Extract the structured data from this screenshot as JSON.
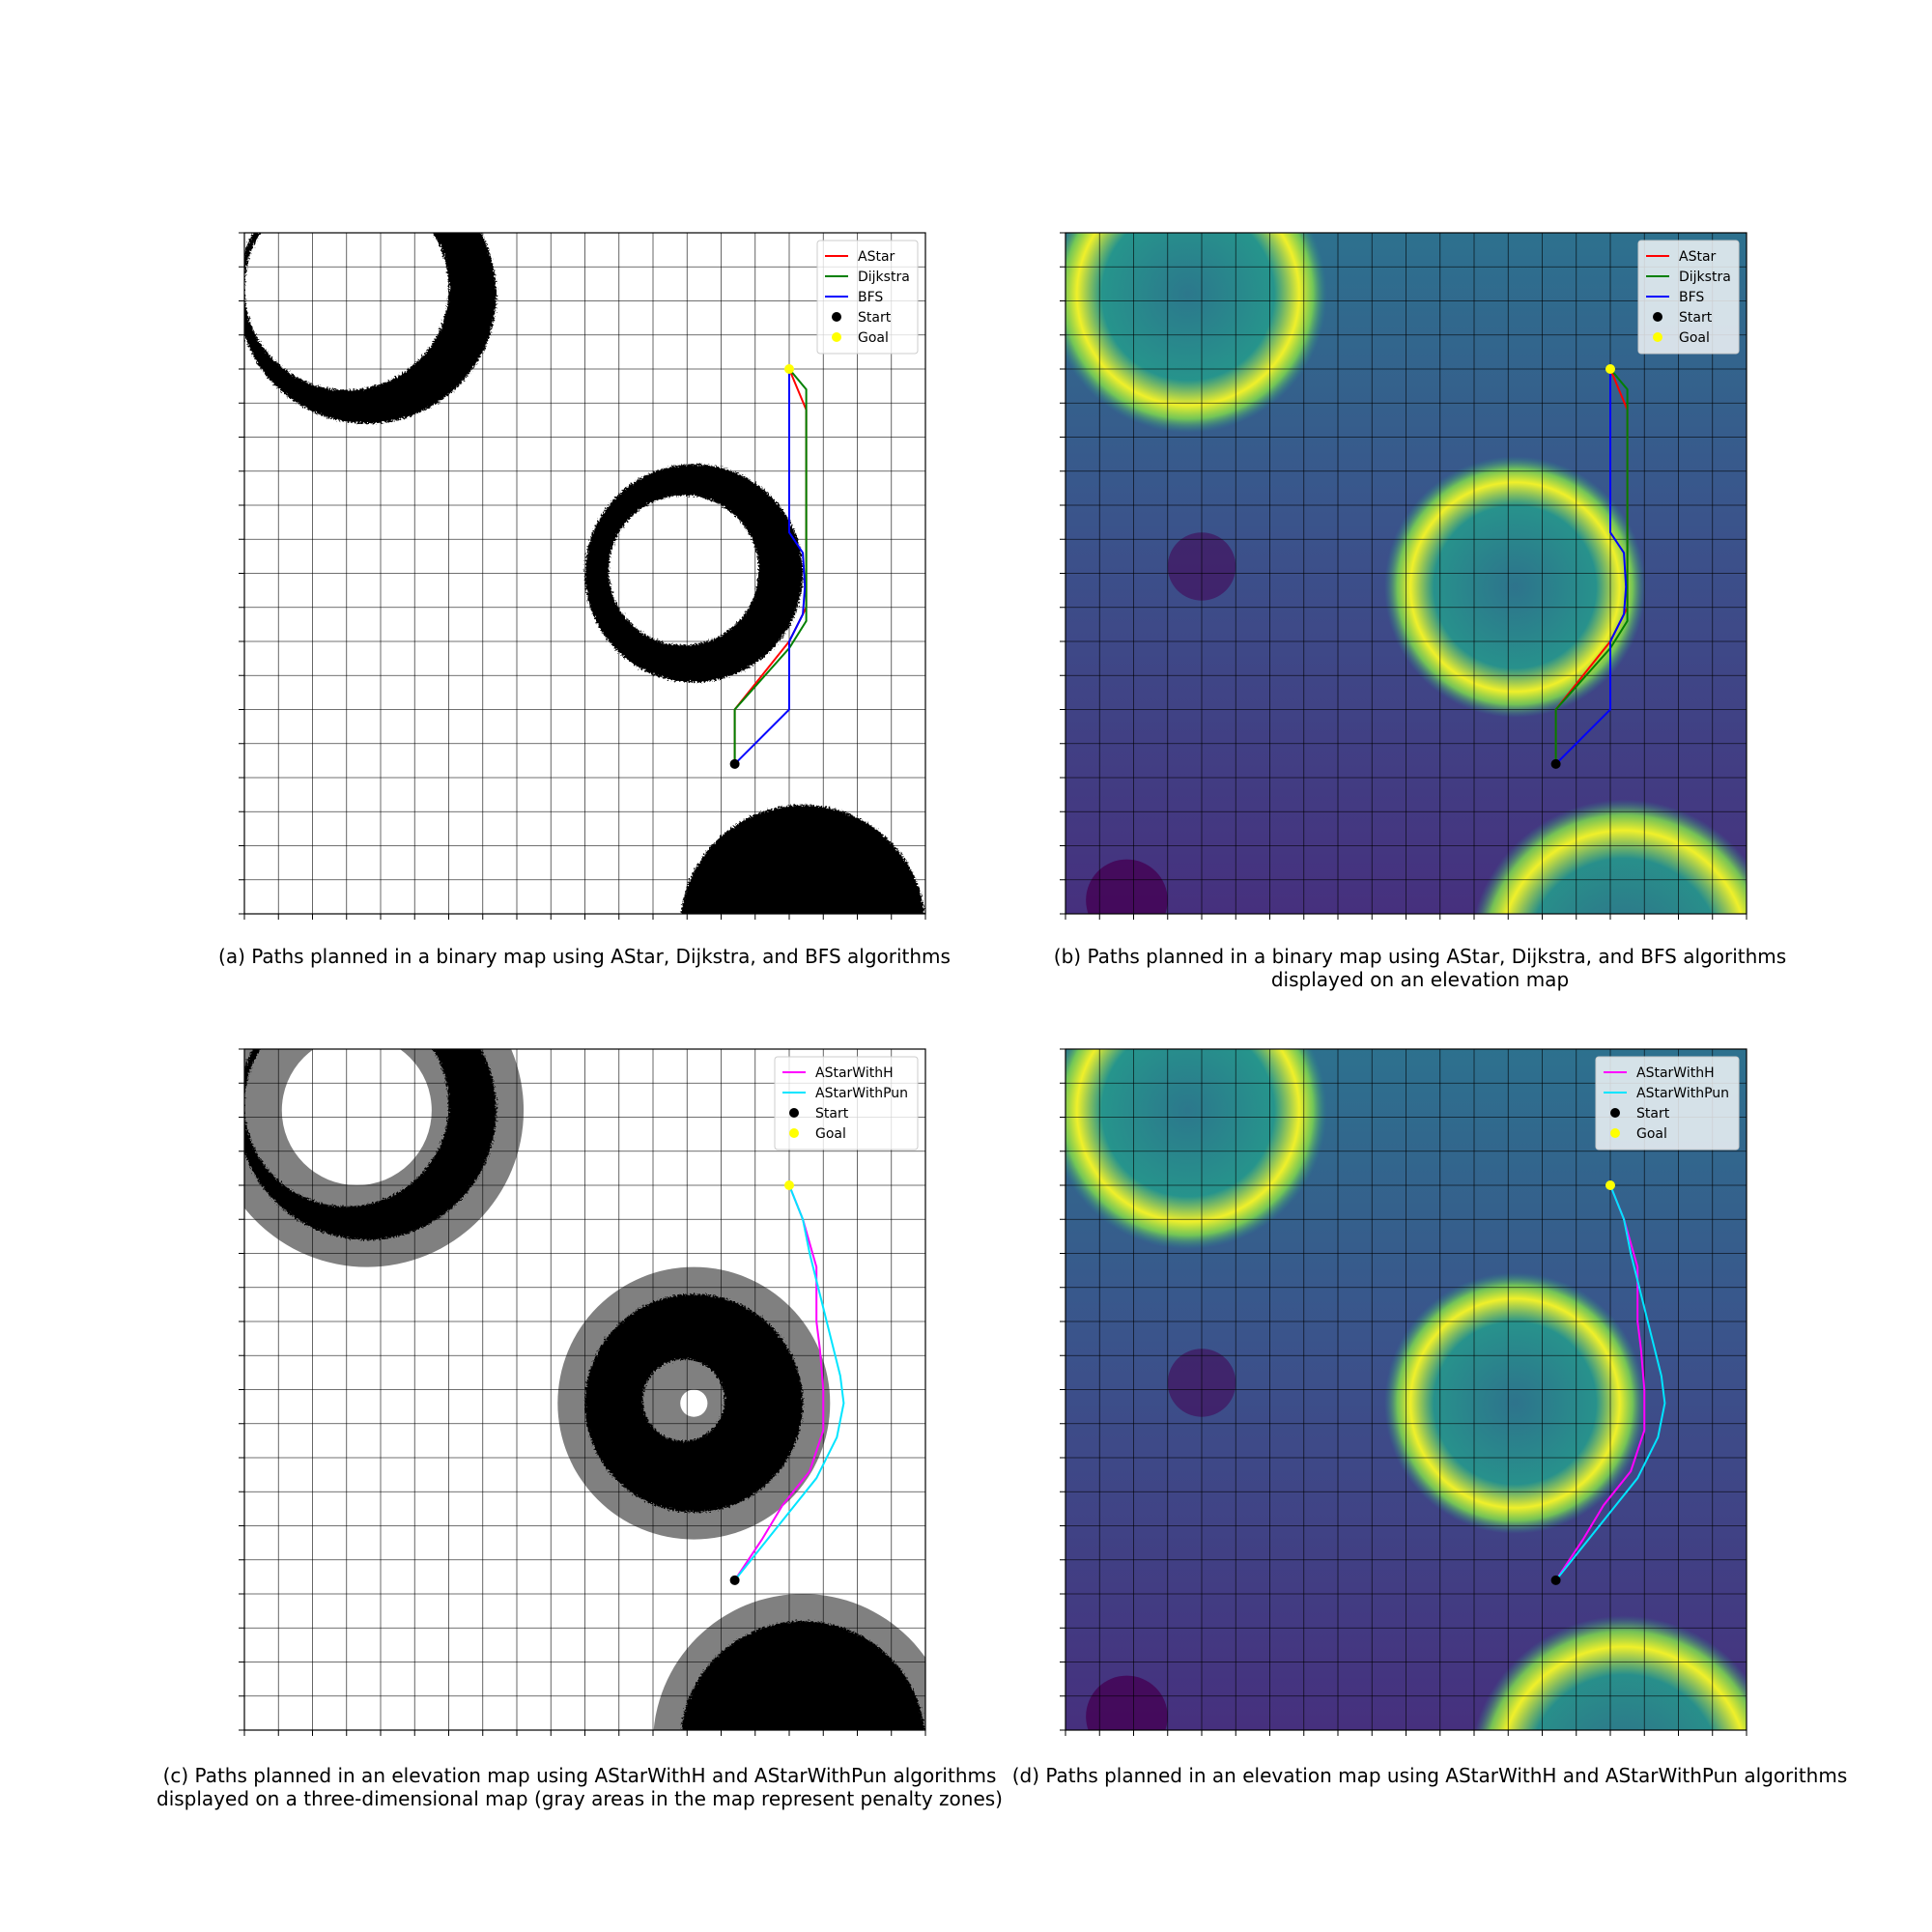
{
  "colors": {
    "astar": "#ff0000",
    "dijkstra": "#008000",
    "bfs": "#0000ff",
    "astar_with_h": "#ff00ff",
    "astar_with_pun": "#00e5ff",
    "start": "#000000",
    "goal": "#ffff00",
    "obstacle": "#000000",
    "penalty_zone": "#808080",
    "grid": "#000000",
    "elevation_low": "#440154",
    "elevation_mid": "#2b7a8c",
    "elevation_high": "#f0f02a"
  },
  "captions": {
    "a": [
      "(a) Paths planned in a binary map using AStar, Dijkstra, and BFS algorithms"
    ],
    "b": [
      "(b) Paths planned in a binary map using AStar, Dijkstra, and BFS algorithms",
      "displayed on an elevation map"
    ],
    "c": [
      "(c) Paths planned in an elevation map using AStarWithH and AStarWithPun algorithms",
      "displayed on a three-dimensional map (gray areas in the map represent penalty zones)"
    ],
    "d": [
      "(d) Paths planned in an elevation map using AStarWithH and AStarWithPun algorithms"
    ]
  },
  "chart_data": [
    {
      "id": "a",
      "type": "line",
      "background": "binary map",
      "grid": true,
      "xlim": [
        0,
        100
      ],
      "ylim": [
        100,
        0
      ],
      "grid_step": 5,
      "obstacles": [
        {
          "cx": 18,
          "cy": 9,
          "r_outer": 19,
          "r_inner": 15,
          "style": "crescent"
        },
        {
          "cx": 66,
          "cy": 50,
          "r_outer": 16,
          "r_inner": 11,
          "style": "ring"
        },
        {
          "cx": 82,
          "cy": 102,
          "r_outer": 18,
          "r_inner": 0,
          "style": "disc"
        }
      ],
      "legend": {
        "position": "top-right",
        "entries": [
          "AStar",
          "Dijkstra",
          "BFS",
          "Start",
          "Goal"
        ]
      },
      "series": [
        {
          "name": "AStar",
          "color_key": "astar",
          "points": [
            [
              80,
              20
            ],
            [
              82.5,
              26
            ],
            [
              82.5,
              55
            ],
            [
              80,
              60
            ],
            [
              72,
              70
            ],
            [
              72,
              78
            ]
          ]
        },
        {
          "name": "Dijkstra",
          "color_key": "dijkstra",
          "points": [
            [
              80,
              20
            ],
            [
              82.5,
              23
            ],
            [
              82.5,
              57
            ],
            [
              80,
              61
            ],
            [
              72,
              70
            ],
            [
              72,
              78
            ]
          ]
        },
        {
          "name": "BFS",
          "color_key": "bfs",
          "points": [
            [
              80,
              20
            ],
            [
              80,
              44
            ],
            [
              82,
              47
            ],
            [
              82.3,
              52
            ],
            [
              82,
              56
            ],
            [
              80,
              60
            ],
            [
              80,
              70
            ],
            [
              72,
              78
            ]
          ]
        }
      ],
      "start": [
        72,
        78
      ],
      "goal": [
        80,
        20
      ]
    },
    {
      "id": "b",
      "type": "line",
      "background": "elevation map",
      "grid": true,
      "xlim": [
        0,
        100
      ],
      "ylim": [
        100,
        0
      ],
      "grid_step": 5,
      "craters": [
        {
          "cx": 18,
          "cy": 9,
          "r": 17
        },
        {
          "cx": 66,
          "cy": 52,
          "r": 16
        },
        {
          "cx": 82,
          "cy": 106,
          "r": 19
        }
      ],
      "legend": {
        "position": "top-right",
        "entries": [
          "AStar",
          "Dijkstra",
          "BFS",
          "Start",
          "Goal"
        ]
      },
      "series": [
        {
          "name": "AStar",
          "color_key": "astar",
          "points": [
            [
              80,
              20
            ],
            [
              82.5,
              26
            ],
            [
              82.5,
              55
            ],
            [
              80,
              60
            ],
            [
              72,
              70
            ],
            [
              72,
              78
            ]
          ]
        },
        {
          "name": "Dijkstra",
          "color_key": "dijkstra",
          "points": [
            [
              80,
              20
            ],
            [
              82.5,
              23
            ],
            [
              82.5,
              57
            ],
            [
              80,
              61
            ],
            [
              72,
              70
            ],
            [
              72,
              78
            ]
          ]
        },
        {
          "name": "BFS",
          "color_key": "bfs",
          "points": [
            [
              80,
              20
            ],
            [
              80,
              44
            ],
            [
              82,
              47
            ],
            [
              82.3,
              52
            ],
            [
              82,
              56
            ],
            [
              80,
              60
            ],
            [
              80,
              70
            ],
            [
              72,
              78
            ]
          ]
        }
      ],
      "start": [
        72,
        78
      ],
      "goal": [
        80,
        20
      ]
    },
    {
      "id": "c",
      "type": "line",
      "background": "binary map with penalty zones",
      "grid": true,
      "xlim": [
        0,
        100
      ],
      "ylim": [
        100,
        0
      ],
      "grid_step": 5,
      "obstacles": [
        {
          "cx": 18,
          "cy": 9,
          "r_outer": 19,
          "r_inner": 15,
          "style": "crescent"
        },
        {
          "cx": 66,
          "cy": 52,
          "r_outer": 16,
          "r_inner": 6,
          "style": "ring"
        },
        {
          "cx": 82,
          "cy": 102,
          "r_outer": 18,
          "r_inner": 0,
          "style": "disc"
        }
      ],
      "penalty_width": 4,
      "legend": {
        "position": "top-right",
        "entries": [
          "AStarWithH",
          "AStarWithPun",
          "Start",
          "Goal"
        ]
      },
      "series": [
        {
          "name": "AStarWithH",
          "color_key": "astar_with_h",
          "points": [
            [
              80,
              20
            ],
            [
              82,
              25
            ],
            [
              84,
              32
            ],
            [
              84,
              40
            ],
            [
              84.5,
              44
            ],
            [
              85,
              50
            ],
            [
              85,
              56
            ],
            [
              83,
              62
            ],
            [
              79,
              67
            ],
            [
              76,
              72
            ],
            [
              72,
              78
            ]
          ]
        },
        {
          "name": "AStarWithPun",
          "color_key": "astar_with_pun",
          "points": [
            [
              80,
              20
            ],
            [
              82,
              25
            ],
            [
              83,
              30
            ],
            [
              84.5,
              36
            ],
            [
              86,
              42
            ],
            [
              87.5,
              48
            ],
            [
              88,
              52
            ],
            [
              87,
              57
            ],
            [
              84,
              63
            ],
            [
              80,
              68
            ],
            [
              76,
              73
            ],
            [
              72,
              78
            ]
          ]
        }
      ],
      "start": [
        72,
        78
      ],
      "goal": [
        80,
        20
      ]
    },
    {
      "id": "d",
      "type": "line",
      "background": "elevation map",
      "grid": true,
      "xlim": [
        0,
        100
      ],
      "ylim": [
        100,
        0
      ],
      "grid_step": 5,
      "craters": [
        {
          "cx": 18,
          "cy": 9,
          "r": 17
        },
        {
          "cx": 66,
          "cy": 52,
          "r": 16
        },
        {
          "cx": 82,
          "cy": 106,
          "r": 19
        }
      ],
      "legend": {
        "position": "top-right",
        "entries": [
          "AStarWithH",
          "AStarWithPun",
          "Start",
          "Goal"
        ]
      },
      "series": [
        {
          "name": "AStarWithH",
          "color_key": "astar_with_h",
          "points": [
            [
              80,
              20
            ],
            [
              82,
              25
            ],
            [
              84,
              32
            ],
            [
              84,
              40
            ],
            [
              84.5,
              44
            ],
            [
              85,
              50
            ],
            [
              85,
              56
            ],
            [
              83,
              62
            ],
            [
              79,
              67
            ],
            [
              76,
              72
            ],
            [
              72,
              78
            ]
          ]
        },
        {
          "name": "AStarWithPun",
          "color_key": "astar_with_pun",
          "points": [
            [
              80,
              20
            ],
            [
              82,
              25
            ],
            [
              83,
              30
            ],
            [
              84.5,
              36
            ],
            [
              86,
              42
            ],
            [
              87.5,
              48
            ],
            [
              88,
              52
            ],
            [
              87,
              57
            ],
            [
              84,
              63
            ],
            [
              80,
              68
            ],
            [
              76,
              73
            ],
            [
              72,
              78
            ]
          ]
        }
      ],
      "start": [
        72,
        78
      ],
      "goal": [
        80,
        20
      ]
    }
  ]
}
